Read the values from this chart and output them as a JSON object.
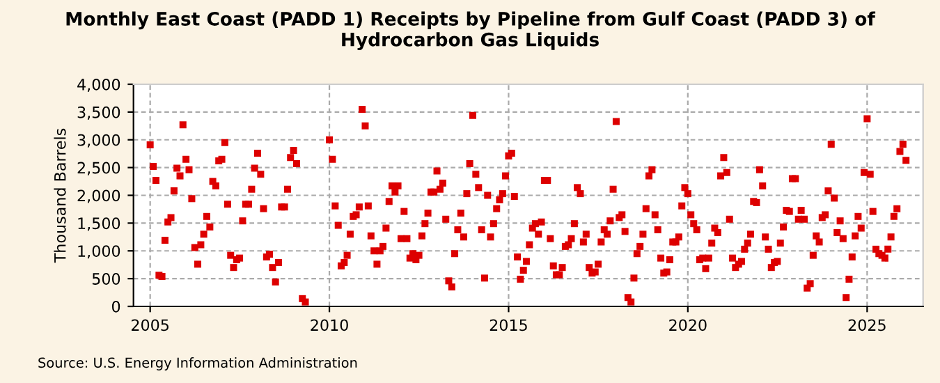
{
  "chart_data": {
    "type": "scatter",
    "title": "Monthly East Coast (PADD 1) Receipts by Pipeline from Gulf Coast (PADD 3) of Hydrocarbon Gas Liquids",
    "ylabel": "Thousand Barrels",
    "annotations": [
      "Source: U.S. Energy Information Administration"
    ],
    "xlim": [
      "2004-07-15",
      "2026-07-25"
    ],
    "xticks": [
      {
        "value": "2005-01-01",
        "label": "2005"
      },
      {
        "value": "2010-01-01",
        "label": "2010"
      },
      {
        "value": "2015-01-01",
        "label": "2015"
      },
      {
        "value": "2020-01-01",
        "label": "2020"
      },
      {
        "value": "2025-01-01",
        "label": "2025"
      }
    ],
    "ylim": [
      0,
      4000
    ],
    "yticks": [
      {
        "value": 0,
        "label": "0"
      },
      {
        "value": 500,
        "label": "500"
      },
      {
        "value": 1000,
        "label": "1,000"
      },
      {
        "value": 1500,
        "label": "1,500"
      },
      {
        "value": 2000,
        "label": "2,000"
      },
      {
        "value": 2500,
        "label": "2,500"
      },
      {
        "value": 3000,
        "label": "3,000"
      },
      {
        "value": 3500,
        "label": "3,500"
      },
      {
        "value": 4000,
        "label": "4,000"
      }
    ],
    "grid": true,
    "legend": false,
    "marker": "square",
    "series": [
      {
        "color": "#dd0000",
        "x": [
          "2005-01",
          "2005-02",
          "2005-03",
          "2005-04",
          "2005-05",
          "2005-06",
          "2005-07",
          "2005-08",
          "2005-09",
          "2005-10",
          "2005-11",
          "2005-12",
          "2006-01",
          "2006-02",
          "2006-03",
          "2006-04",
          "2006-05",
          "2006-06",
          "2006-07",
          "2006-08",
          "2006-09",
          "2006-10",
          "2006-11",
          "2006-12",
          "2007-01",
          "2007-02",
          "2007-03",
          "2007-04",
          "2007-05",
          "2007-06",
          "2007-07",
          "2007-08",
          "2007-09",
          "2007-10",
          "2007-11",
          "2007-12",
          "2008-01",
          "2008-02",
          "2008-03",
          "2008-04",
          "2008-05",
          "2008-06",
          "2008-07",
          "2008-08",
          "2008-09",
          "2008-10",
          "2008-11",
          "2008-12",
          "2009-01",
          "2009-02",
          "2009-04",
          "2009-05",
          "2010-01",
          "2010-02",
          "2010-03",
          "2010-04",
          "2010-05",
          "2010-06",
          "2010-07",
          "2010-08",
          "2010-09",
          "2010-10",
          "2010-11",
          "2010-12",
          "2011-01",
          "2011-02",
          "2011-03",
          "2011-04",
          "2011-05",
          "2011-06",
          "2011-07",
          "2011-08",
          "2011-09",
          "2011-10",
          "2011-11",
          "2011-12",
          "2012-01",
          "2012-02",
          "2012-03",
          "2012-04",
          "2012-05",
          "2012-06",
          "2012-07",
          "2012-08",
          "2012-09",
          "2012-10",
          "2012-11",
          "2012-12",
          "2013-01",
          "2013-02",
          "2013-03",
          "2013-04",
          "2013-05",
          "2013-06",
          "2013-07",
          "2013-08",
          "2013-09",
          "2013-10",
          "2013-11",
          "2013-12",
          "2014-01",
          "2014-02",
          "2014-03",
          "2014-04",
          "2014-05",
          "2014-06",
          "2014-07",
          "2014-08",
          "2014-09",
          "2014-10",
          "2014-11",
          "2014-12",
          "2015-01",
          "2015-02",
          "2015-03",
          "2015-04",
          "2015-05",
          "2015-06",
          "2015-07",
          "2015-08",
          "2015-09",
          "2015-10",
          "2015-11",
          "2015-12",
          "2016-01",
          "2016-02",
          "2016-03",
          "2016-04",
          "2016-05",
          "2016-06",
          "2016-07",
          "2016-08",
          "2016-09",
          "2016-10",
          "2016-11",
          "2016-12",
          "2017-01",
          "2017-02",
          "2017-03",
          "2017-04",
          "2017-05",
          "2017-06",
          "2017-07",
          "2017-08",
          "2017-09",
          "2017-10",
          "2017-11",
          "2017-12",
          "2018-01",
          "2018-02",
          "2018-03",
          "2018-04",
          "2018-05",
          "2018-06",
          "2018-07",
          "2018-08",
          "2018-09",
          "2018-10",
          "2018-11",
          "2018-12",
          "2019-01",
          "2019-02",
          "2019-03",
          "2019-04",
          "2019-05",
          "2019-06",
          "2019-07",
          "2019-08",
          "2019-09",
          "2019-10",
          "2019-11",
          "2019-12",
          "2020-01",
          "2020-02",
          "2020-03",
          "2020-04",
          "2020-05",
          "2020-06",
          "2020-07",
          "2020-08",
          "2020-09",
          "2020-10",
          "2020-11",
          "2020-12",
          "2021-01",
          "2021-02",
          "2021-03",
          "2021-04",
          "2021-05",
          "2021-06",
          "2021-07",
          "2021-08",
          "2021-09",
          "2021-10",
          "2021-11",
          "2021-12",
          "2022-01",
          "2022-02",
          "2022-03",
          "2022-04",
          "2022-05",
          "2022-06",
          "2022-07",
          "2022-08",
          "2022-09",
          "2022-10",
          "2022-11",
          "2022-12",
          "2023-01",
          "2023-02",
          "2023-03",
          "2023-04",
          "2023-05",
          "2023-06",
          "2023-07",
          "2023-08",
          "2023-09",
          "2023-10",
          "2023-11",
          "2023-12",
          "2024-01",
          "2024-02",
          "2024-03",
          "2024-04",
          "2024-05",
          "2024-06",
          "2024-07",
          "2024-08",
          "2024-09",
          "2024-10",
          "2024-11",
          "2024-12",
          "2025-01",
          "2025-02",
          "2025-03",
          "2025-04",
          "2025-05",
          "2025-06",
          "2025-07",
          "2025-08",
          "2025-09",
          "2025-10",
          "2025-11",
          "2025-12",
          "2026-01",
          "2026-02"
        ],
        "values": [
          2910,
          2520,
          2270,
          560,
          540,
          1190,
          1520,
          1600,
          2080,
          2490,
          2350,
          3270,
          2650,
          2460,
          1940,
          1060,
          760,
          1110,
          1300,
          1620,
          1430,
          2250,
          2170,
          2620,
          2650,
          2950,
          1840,
          920,
          700,
          840,
          870,
          1540,
          1840,
          1840,
          2110,
          2490,
          2760,
          2380,
          1760,
          890,
          940,
          700,
          440,
          790,
          1790,
          1790,
          2110,
          2680,
          2810,
          2570,
          140,
          80,
          3000,
          2650,
          1810,
          1460,
          730,
          790,
          920,
          1300,
          1620,
          1650,
          1790,
          3550,
          3250,
          1810,
          1270,
          1000,
          760,
          1000,
          1080,
          1410,
          1890,
          2170,
          2060,
          2170,
          1220,
          1710,
          1220,
          870,
          950,
          840,
          920,
          1270,
          1490,
          1680,
          2060,
          2060,
          2440,
          2110,
          2220,
          1570,
          460,
          350,
          950,
          1380,
          1680,
          1250,
          2030,
          2570,
          3440,
          2380,
          2140,
          1380,
          510,
          2000,
          1250,
          1490,
          1760,
          1920,
          2030,
          2350,
          2710,
          2760,
          1980,
          890,
          490,
          650,
          810,
          1110,
          1410,
          1490,
          1300,
          1520,
          2270,
          2270,
          1220,
          730,
          570,
          570,
          700,
          1080,
          1110,
          1220,
          1490,
          2140,
          2030,
          1160,
          1300,
          700,
          600,
          620,
          760,
          1160,
          1380,
          1300,
          1540,
          2110,
          3330,
          1600,
          1650,
          1350,
          160,
          80,
          510,
          950,
          1080,
          1300,
          1760,
          2350,
          2460,
          1650,
          1380,
          870,
          600,
          620,
          840,
          1160,
          1160,
          1250,
          1810,
          2140,
          2030,
          1650,
          1490,
          1380,
          840,
          870,
          680,
          870,
          1140,
          1410,
          1330,
          2350,
          2680,
          2410,
          1570,
          870,
          700,
          760,
          810,
          1030,
          1140,
          1300,
          1890,
          1870,
          2460,
          2170,
          1250,
          1030,
          700,
          790,
          810,
          1140,
          1430,
          1730,
          1710,
          2300,
          2300,
          1570,
          1730,
          1570,
          330,
          410,
          920,
          1270,
          1160,
          1600,
          1650,
          2080,
          2920,
          1950,
          1330,
          1540,
          1220,
          160,
          490,
          890,
          1270,
          1620,
          1410,
          2410,
          3380,
          2380,
          1710,
          1030,
          950,
          920,
          870,
          1030,
          1250,
          1620,
          1760,
          2790,
          2920,
          2630
        ]
      }
    ]
  }
}
